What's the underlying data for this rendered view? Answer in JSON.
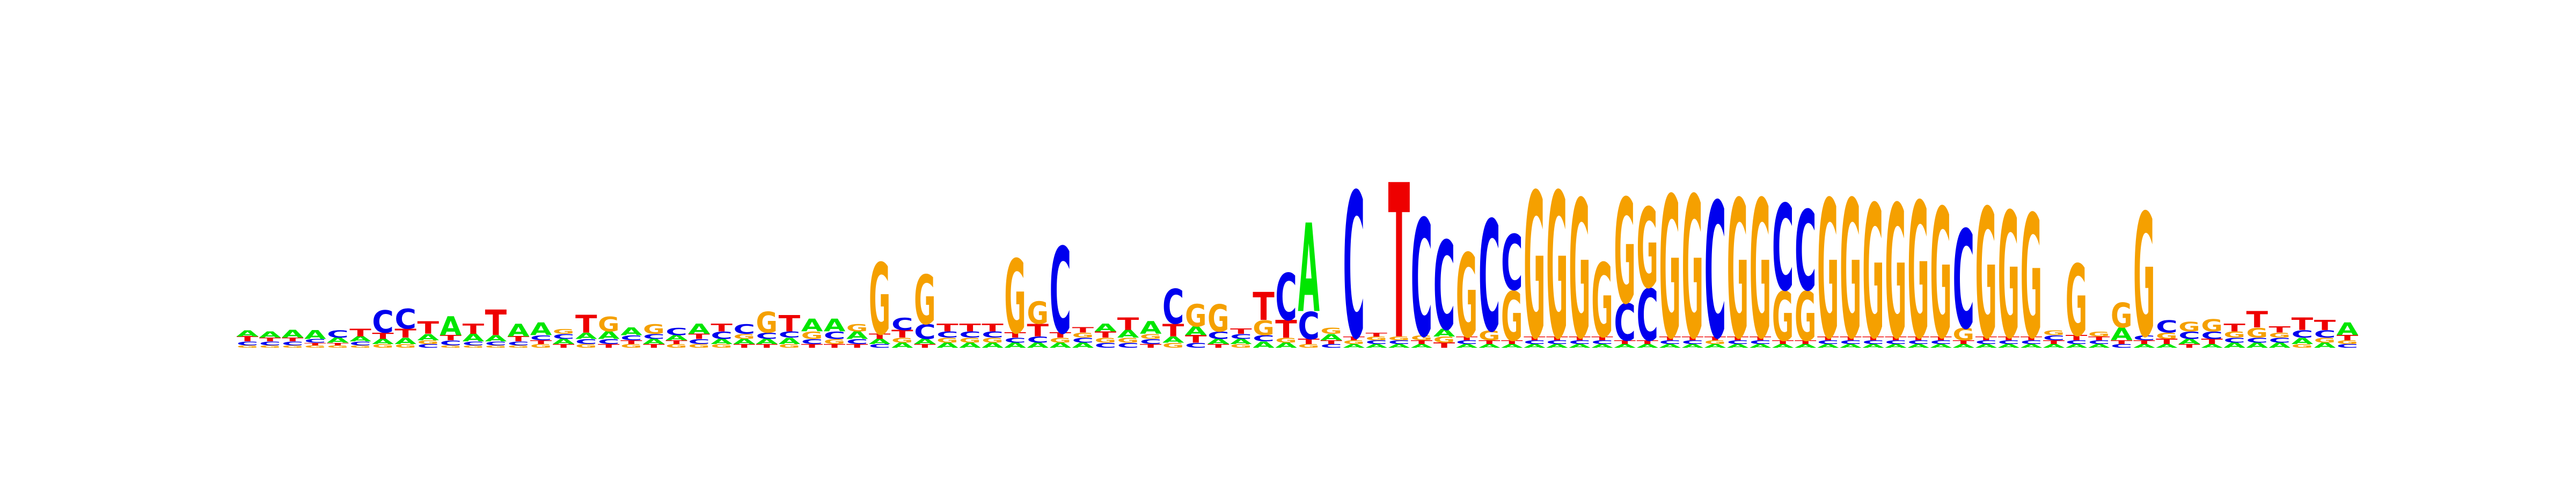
{
  "chart_data": {
    "type": "sequence-logo",
    "title": "",
    "xlabel": "",
    "ylabel": "",
    "ylim": [
      0,
      2
    ],
    "alphabet": [
      "A",
      "C",
      "G",
      "T"
    ],
    "colors": {
      "A": "#00e600",
      "C": "#0000ee",
      "G": "#f5a000",
      "T": "#ee0000"
    },
    "positions": [
      {
        "A": 0.05,
        "C": 0.03,
        "G": 0.02,
        "T": 0.04
      },
      {
        "A": 0.05,
        "C": 0.03,
        "G": 0.02,
        "T": 0.03
      },
      {
        "A": 0.06,
        "C": 0.03,
        "G": 0.02,
        "T": 0.03
      },
      {
        "A": 0.07,
        "C": 0.03,
        "G": 0.02,
        "T": 0.02
      },
      {
        "A": 0.04,
        "C": 0.06,
        "G": 0.02,
        "T": 0.02
      },
      {
        "A": 0.04,
        "C": 0.03,
        "G": 0.02,
        "T": 0.06
      },
      {
        "A": 0.04,
        "C": 0.18,
        "G": 0.03,
        "T": 0.05
      },
      {
        "A": 0.05,
        "C": 0.16,
        "G": 0.03,
        "T": 0.07
      },
      {
        "A": 0.05,
        "C": 0.03,
        "G": 0.03,
        "T": 0.1
      },
      {
        "A": 0.15,
        "C": 0.04,
        "G": 0.02,
        "T": 0.04
      },
      {
        "A": 0.06,
        "C": 0.03,
        "G": 0.02,
        "T": 0.08
      },
      {
        "A": 0.05,
        "C": 0.03,
        "G": 0.02,
        "T": 0.2
      },
      {
        "A": 0.1,
        "C": 0.03,
        "G": 0.02,
        "T": 0.04
      },
      {
        "A": 0.1,
        "C": 0.04,
        "G": 0.03,
        "T": 0.03
      },
      {
        "A": 0.04,
        "C": 0.04,
        "G": 0.04,
        "T": 0.03
      },
      {
        "A": 0.05,
        "C": 0.04,
        "G": 0.03,
        "T": 0.14
      },
      {
        "A": 0.06,
        "C": 0.04,
        "G": 0.12,
        "T": 0.03
      },
      {
        "A": 0.06,
        "C": 0.04,
        "G": 0.03,
        "T": 0.03
      },
      {
        "A": 0.04,
        "C": 0.04,
        "G": 0.08,
        "T": 0.03
      },
      {
        "A": 0.04,
        "C": 0.06,
        "G": 0.03,
        "T": 0.03
      },
      {
        "A": 0.08,
        "C": 0.04,
        "G": 0.03,
        "T": 0.04
      },
      {
        "A": 0.04,
        "C": 0.06,
        "G": 0.03,
        "T": 0.06
      },
      {
        "A": 0.04,
        "C": 0.08,
        "G": 0.04,
        "T": 0.03
      },
      {
        "A": 0.04,
        "C": 0.05,
        "G": 0.17,
        "T": 0.03
      },
      {
        "A": 0.05,
        "C": 0.05,
        "G": 0.03,
        "T": 0.13
      },
      {
        "A": 0.1,
        "C": 0.04,
        "G": 0.06,
        "T": 0.03
      },
      {
        "A": 0.1,
        "C": 0.06,
        "G": 0.04,
        "T": 0.03
      },
      {
        "A": 0.06,
        "C": 0.04,
        "G": 0.06,
        "T": 0.03
      },
      {
        "A": 0.04,
        "C": 0.03,
        "G": 0.58,
        "T": 0.04
      },
      {
        "A": 0.04,
        "C": 0.1,
        "G": 0.04,
        "T": 0.06
      },
      {
        "A": 0.04,
        "C": 0.12,
        "G": 0.4,
        "T": 0.03
      },
      {
        "A": 0.04,
        "C": 0.05,
        "G": 0.04,
        "T": 0.06
      },
      {
        "A": 0.04,
        "C": 0.05,
        "G": 0.04,
        "T": 0.06
      },
      {
        "A": 0.04,
        "C": 0.05,
        "G": 0.04,
        "T": 0.06
      },
      {
        "A": 0.04,
        "C": 0.04,
        "G": 0.6,
        "T": 0.04
      },
      {
        "A": 0.04,
        "C": 0.05,
        "G": 0.18,
        "T": 0.1
      },
      {
        "A": 0.04,
        "C": 0.7,
        "G": 0.04,
        "T": 0.04
      },
      {
        "A": 0.04,
        "C": 0.04,
        "G": 0.04,
        "T": 0.04
      },
      {
        "A": 0.06,
        "C": 0.04,
        "G": 0.04,
        "T": 0.05
      },
      {
        "A": 0.06,
        "C": 0.04,
        "G": 0.04,
        "T": 0.1
      },
      {
        "A": 0.1,
        "C": 0.04,
        "G": 0.04,
        "T": 0.03
      },
      {
        "A": 0.05,
        "C": 0.28,
        "G": 0.04,
        "T": 0.1
      },
      {
        "A": 0.07,
        "C": 0.04,
        "G": 0.18,
        "T": 0.06
      },
      {
        "A": 0.04,
        "C": 0.06,
        "G": 0.22,
        "T": 0.03
      },
      {
        "A": 0.04,
        "C": 0.04,
        "G": 0.03,
        "T": 0.04
      },
      {
        "A": 0.05,
        "C": 0.05,
        "G": 0.12,
        "T": 0.22
      },
      {
        "A": 0.04,
        "C": 0.38,
        "G": 0.04,
        "T": 0.14
      },
      {
        "A": 0.7,
        "C": 0.22,
        "G": 0.03,
        "T": 0.04
      },
      {
        "A": 0.05,
        "C": 0.03,
        "G": 0.05,
        "T": 0.03
      },
      {
        "A": 0.03,
        "C": 1.18,
        "G": 0.03,
        "T": 0.03
      },
      {
        "A": 0.03,
        "C": 0.03,
        "G": 0.03,
        "T": 0.03
      },
      {
        "A": 0.03,
        "C": 0.03,
        "G": 0.03,
        "T": 1.22
      },
      {
        "A": 0.03,
        "C": 0.95,
        "G": 0.04,
        "T": 0.03
      },
      {
        "A": 0.06,
        "C": 0.72,
        "G": 0.05,
        "T": 0.04
      },
      {
        "A": 0.03,
        "C": 0.03,
        "G": 0.68,
        "T": 0.03
      },
      {
        "A": 0.03,
        "C": 0.9,
        "G": 0.08,
        "T": 0.03
      },
      {
        "A": 0.03,
        "C": 0.45,
        "G": 0.4,
        "T": 0.03
      },
      {
        "A": 0.03,
        "C": 0.03,
        "G": 1.18,
        "T": 0.03
      },
      {
        "A": 0.03,
        "C": 0.03,
        "G": 1.18,
        "T": 0.03
      },
      {
        "A": 0.03,
        "C": 0.03,
        "G": 1.12,
        "T": 0.03
      },
      {
        "A": 0.03,
        "C": 0.03,
        "G": 0.6,
        "T": 0.03
      },
      {
        "A": 0.03,
        "C": 0.3,
        "G": 0.85,
        "T": 0.03
      },
      {
        "A": 0.03,
        "C": 0.42,
        "G": 0.65,
        "T": 0.03
      },
      {
        "A": 0.03,
        "C": 0.03,
        "G": 1.15,
        "T": 0.03
      },
      {
        "A": 0.03,
        "C": 0.03,
        "G": 1.15,
        "T": 0.03
      },
      {
        "A": 0.03,
        "C": 1.1,
        "G": 0.03,
        "T": 0.03
      },
      {
        "A": 0.03,
        "C": 0.03,
        "G": 1.12,
        "T": 0.03
      },
      {
        "A": 0.03,
        "C": 0.03,
        "G": 1.12,
        "T": 0.03
      },
      {
        "A": 0.03,
        "C": 0.7,
        "G": 0.4,
        "T": 0.03
      },
      {
        "A": 0.03,
        "C": 0.65,
        "G": 0.4,
        "T": 0.03
      },
      {
        "A": 0.03,
        "C": 0.03,
        "G": 1.12,
        "T": 0.03
      },
      {
        "A": 0.03,
        "C": 0.03,
        "G": 1.12,
        "T": 0.03
      },
      {
        "A": 0.03,
        "C": 0.03,
        "G": 1.08,
        "T": 0.03
      },
      {
        "A": 0.03,
        "C": 0.03,
        "G": 1.08,
        "T": 0.03
      },
      {
        "A": 0.03,
        "C": 0.03,
        "G": 1.1,
        "T": 0.03
      },
      {
        "A": 0.03,
        "C": 0.03,
        "G": 1.05,
        "T": 0.03
      },
      {
        "A": 0.03,
        "C": 0.8,
        "G": 0.1,
        "T": 0.03
      },
      {
        "A": 0.03,
        "C": 0.03,
        "G": 1.05,
        "T": 0.03
      },
      {
        "A": 0.03,
        "C": 0.03,
        "G": 1.02,
        "T": 0.03
      },
      {
        "A": 0.03,
        "C": 0.03,
        "G": 1.0,
        "T": 0.03
      },
      {
        "A": 0.03,
        "C": 0.04,
        "G": 0.04,
        "T": 0.03
      },
      {
        "A": 0.03,
        "C": 0.03,
        "G": 0.58,
        "T": 0.04
      },
      {
        "A": 0.03,
        "C": 0.03,
        "G": 0.04,
        "T": 0.03
      },
      {
        "A": 0.1,
        "C": 0.03,
        "G": 0.2,
        "T": 0.03
      },
      {
        "A": 0.03,
        "C": 0.04,
        "G": 1.0,
        "T": 0.03
      },
      {
        "A": 0.03,
        "C": 0.1,
        "G": 0.05,
        "T": 0.04
      },
      {
        "A": 0.04,
        "C": 0.06,
        "G": 0.08,
        "T": 0.03
      },
      {
        "A": 0.03,
        "C": 0.06,
        "G": 0.1,
        "T": 0.04
      },
      {
        "A": 0.04,
        "C": 0.04,
        "G": 0.05,
        "T": 0.06
      },
      {
        "A": 0.04,
        "C": 0.04,
        "G": 0.08,
        "T": 0.13
      },
      {
        "A": 0.04,
        "C": 0.04,
        "G": 0.04,
        "T": 0.05
      },
      {
        "A": 0.05,
        "C": 0.06,
        "G": 0.03,
        "T": 0.1
      },
      {
        "A": 0.04,
        "C": 0.06,
        "G": 0.04,
        "T": 0.08
      },
      {
        "A": 0.1,
        "C": 0.03,
        "G": 0.03,
        "T": 0.04
      }
    ]
  }
}
